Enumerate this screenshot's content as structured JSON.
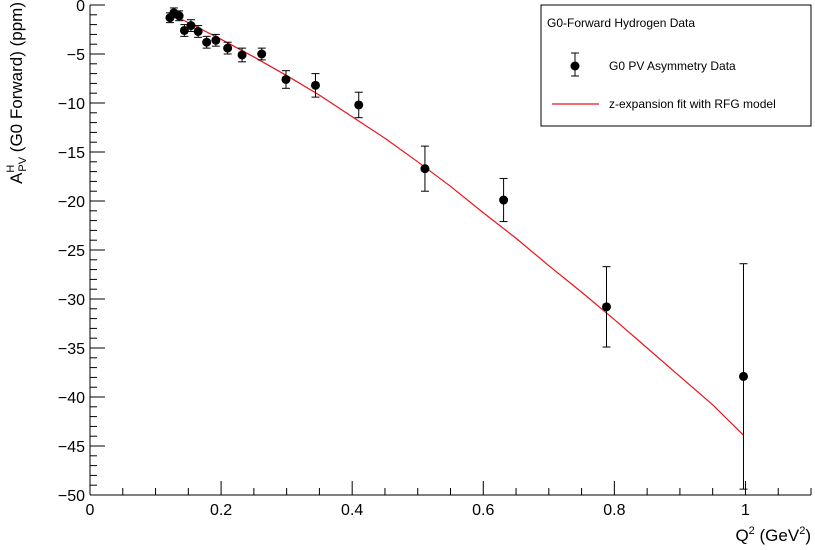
{
  "chart_data": {
    "type": "scatter",
    "title": "",
    "xlabel": {
      "base": "Q",
      "sup": "2",
      "unit_open": " (GeV",
      "unit_sup": "2",
      "unit_close": ")"
    },
    "ylabel": {
      "base": "A",
      "sup": "H",
      "sub": "PV",
      "rest": " (G0 Forward) (ppm)"
    },
    "xlim": [
      0,
      1.1
    ],
    "ylim": [
      -50,
      0
    ],
    "x_ticks": [
      0,
      0.2,
      0.4,
      0.6,
      0.8,
      1
    ],
    "x_tick_labels": [
      "0",
      "0.2",
      "0.4",
      "0.6",
      "0.8",
      "1"
    ],
    "y_ticks": [
      0,
      -5,
      -10,
      -15,
      -20,
      -25,
      -30,
      -35,
      -40,
      -45,
      -50
    ],
    "y_tick_labels": [
      "0",
      "−5",
      "−10",
      "−15",
      "−20",
      "−25",
      "−30",
      "−35",
      "−40",
      "−45",
      "−50"
    ],
    "grid": false,
    "legend": {
      "placement": "top-right",
      "header": "G0-Forward Hydrogen Data",
      "entries": [
        "G0 PV Asymmetry Data",
        "z-expansion fit with RFG model"
      ]
    },
    "series": [
      {
        "name": "G0 PV Asymmetry Data",
        "kind": "points-with-errors",
        "color": "#000000",
        "points": [
          {
            "x": 0.122,
            "y": -1.3,
            "err": 0.5
          },
          {
            "x": 0.128,
            "y": -0.8,
            "err": 0.5
          },
          {
            "x": 0.136,
            "y": -1.1,
            "err": 0.5
          },
          {
            "x": 0.144,
            "y": -2.6,
            "err": 0.6
          },
          {
            "x": 0.154,
            "y": -2.1,
            "err": 0.6
          },
          {
            "x": 0.165,
            "y": -2.7,
            "err": 0.6
          },
          {
            "x": 0.178,
            "y": -3.8,
            "err": 0.6
          },
          {
            "x": 0.192,
            "y": -3.6,
            "err": 0.6
          },
          {
            "x": 0.21,
            "y": -4.4,
            "err": 0.6
          },
          {
            "x": 0.232,
            "y": -5.1,
            "err": 0.7
          },
          {
            "x": 0.262,
            "y": -5.0,
            "err": 0.6
          },
          {
            "x": 0.299,
            "y": -7.6,
            "err": 0.9
          },
          {
            "x": 0.344,
            "y": -8.2,
            "err": 1.2
          },
          {
            "x": 0.41,
            "y": -10.2,
            "err": 1.3
          },
          {
            "x": 0.511,
            "y": -16.7,
            "err": 2.3
          },
          {
            "x": 0.631,
            "y": -19.9,
            "err": 2.2
          },
          {
            "x": 0.788,
            "y": -30.8,
            "err": 4.1
          },
          {
            "x": 0.997,
            "y": -37.9,
            "err": 11.5
          }
        ]
      },
      {
        "name": "z-expansion fit with RFG model",
        "kind": "line",
        "color": "#e8141b",
        "x": [
          0.122,
          0.15,
          0.2,
          0.25,
          0.3,
          0.35,
          0.4,
          0.45,
          0.5,
          0.55,
          0.6,
          0.65,
          0.7,
          0.75,
          0.8,
          0.85,
          0.9,
          0.95,
          0.997
        ],
        "y": [
          -0.9,
          -1.8,
          -3.5,
          -5.3,
          -7.2,
          -9.2,
          -11.4,
          -13.6,
          -16.0,
          -18.5,
          -21.2,
          -23.8,
          -26.6,
          -29.3,
          -32.1,
          -35.0,
          -37.9,
          -40.8,
          -43.9
        ]
      }
    ]
  }
}
